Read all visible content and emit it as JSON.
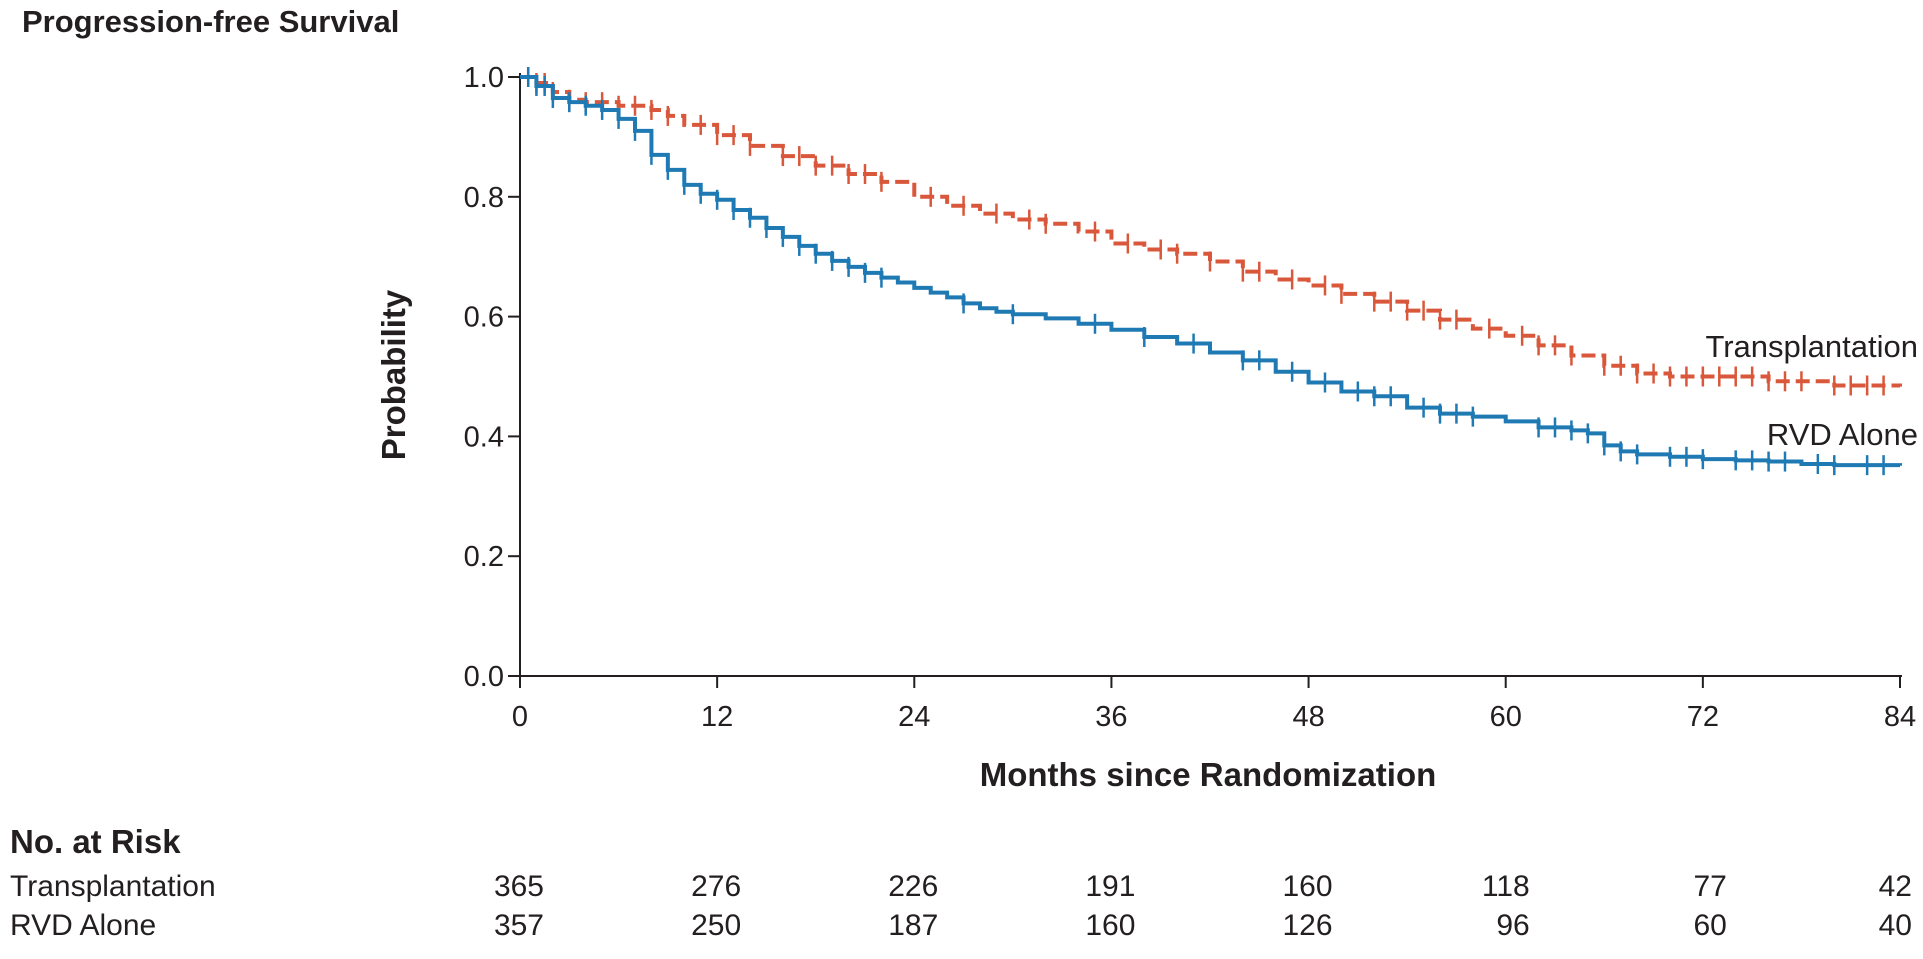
{
  "chart_data": {
    "type": "line",
    "title": "Progression-free Survival",
    "xlabel": "Months since Randomization",
    "ylabel": "Probability",
    "xlim": [
      0,
      84
    ],
    "ylim": [
      0,
      1.0
    ],
    "x_ticks": [
      0,
      12,
      24,
      36,
      48,
      60,
      72,
      84
    ],
    "y_ticks": [
      "0.0",
      "0.2",
      "0.4",
      "0.6",
      "0.8",
      "1.0"
    ],
    "grid": false,
    "legend": "inline labels at right end of curves",
    "series": [
      {
        "name": "Transplantation",
        "color": "#d9573a",
        "dash": "dashed",
        "points": [
          [
            0,
            1.0
          ],
          [
            1,
            0.99
          ],
          [
            2,
            0.975
          ],
          [
            3,
            0.962
          ],
          [
            4,
            0.958
          ],
          [
            6,
            0.952
          ],
          [
            8,
            0.945
          ],
          [
            9,
            0.935
          ],
          [
            10,
            0.92
          ],
          [
            12,
            0.903
          ],
          [
            14,
            0.885
          ],
          [
            16,
            0.868
          ],
          [
            18,
            0.852
          ],
          [
            20,
            0.838
          ],
          [
            22,
            0.825
          ],
          [
            24,
            0.8
          ],
          [
            26,
            0.785
          ],
          [
            28,
            0.772
          ],
          [
            30,
            0.762
          ],
          [
            32,
            0.755
          ],
          [
            34,
            0.742
          ],
          [
            36,
            0.722
          ],
          [
            38,
            0.712
          ],
          [
            40,
            0.705
          ],
          [
            42,
            0.692
          ],
          [
            44,
            0.675
          ],
          [
            46,
            0.662
          ],
          [
            48,
            0.652
          ],
          [
            50,
            0.638
          ],
          [
            52,
            0.625
          ],
          [
            54,
            0.61
          ],
          [
            56,
            0.595
          ],
          [
            58,
            0.58
          ],
          [
            60,
            0.568
          ],
          [
            62,
            0.552
          ],
          [
            64,
            0.535
          ],
          [
            66,
            0.518
          ],
          [
            68,
            0.505
          ],
          [
            70,
            0.5
          ],
          [
            72,
            0.5
          ],
          [
            76,
            0.492
          ],
          [
            80,
            0.485
          ],
          [
            84,
            0.483
          ]
        ],
        "censored": [
          0.5,
          1,
          1.5,
          2,
          3,
          4,
          5,
          6,
          7,
          8,
          9,
          11,
          12,
          13,
          14,
          16,
          17,
          18,
          19,
          20,
          21,
          22,
          25,
          27,
          29,
          31,
          32,
          35,
          37,
          39,
          40,
          42,
          44,
          45,
          47,
          49,
          50,
          52,
          53,
          54,
          55,
          56,
          57,
          59,
          61,
          62,
          63,
          64,
          66,
          67,
          68,
          69,
          70,
          71,
          72,
          73,
          74,
          75,
          76,
          77,
          78,
          80,
          81,
          82,
          83
        ]
      },
      {
        "name": "RVD Alone",
        "color": "#1f7ab4",
        "dash": "solid",
        "points": [
          [
            0,
            1.0
          ],
          [
            1,
            0.985
          ],
          [
            2,
            0.965
          ],
          [
            3,
            0.958
          ],
          [
            4,
            0.952
          ],
          [
            5,
            0.945
          ],
          [
            6,
            0.93
          ],
          [
            7,
            0.91
          ],
          [
            8,
            0.87
          ],
          [
            9,
            0.845
          ],
          [
            10,
            0.82
          ],
          [
            11,
            0.805
          ],
          [
            12,
            0.795
          ],
          [
            13,
            0.778
          ],
          [
            14,
            0.765
          ],
          [
            15,
            0.748
          ],
          [
            16,
            0.733
          ],
          [
            17,
            0.718
          ],
          [
            18,
            0.705
          ],
          [
            19,
            0.693
          ],
          [
            20,
            0.683
          ],
          [
            21,
            0.673
          ],
          [
            22,
            0.665
          ],
          [
            23,
            0.657
          ],
          [
            24,
            0.648
          ],
          [
            25,
            0.64
          ],
          [
            26,
            0.632
          ],
          [
            27,
            0.622
          ],
          [
            28,
            0.614
          ],
          [
            29,
            0.608
          ],
          [
            30,
            0.604
          ],
          [
            32,
            0.597
          ],
          [
            34,
            0.588
          ],
          [
            36,
            0.578
          ],
          [
            38,
            0.566
          ],
          [
            40,
            0.555
          ],
          [
            42,
            0.54
          ],
          [
            44,
            0.527
          ],
          [
            46,
            0.508
          ],
          [
            48,
            0.49
          ],
          [
            50,
            0.475
          ],
          [
            52,
            0.467
          ],
          [
            54,
            0.448
          ],
          [
            56,
            0.438
          ],
          [
            58,
            0.433
          ],
          [
            60,
            0.425
          ],
          [
            62,
            0.415
          ],
          [
            64,
            0.41
          ],
          [
            65,
            0.405
          ],
          [
            66,
            0.385
          ],
          [
            67,
            0.375
          ],
          [
            68,
            0.37
          ],
          [
            70,
            0.366
          ],
          [
            72,
            0.362
          ],
          [
            74,
            0.36
          ],
          [
            76,
            0.358
          ],
          [
            78,
            0.354
          ],
          [
            80,
            0.352
          ],
          [
            84,
            0.351
          ]
        ],
        "censored": [
          0.5,
          1,
          1.5,
          2,
          3,
          4,
          5,
          6,
          7,
          8,
          9,
          10,
          11,
          12,
          13,
          14,
          15,
          16,
          17,
          18,
          19,
          20,
          21,
          22,
          27,
          30,
          35,
          38,
          41,
          44,
          45,
          47,
          49,
          51,
          52,
          53,
          55,
          56,
          57,
          58,
          62,
          63,
          64,
          65,
          66,
          67,
          68,
          70,
          71,
          72,
          74,
          75,
          76,
          77,
          79,
          80,
          82,
          83
        ]
      }
    ],
    "risk_table": {
      "heading": "No. at Risk",
      "rows": [
        {
          "label": "Transplantation",
          "values": [
            "365",
            "276",
            "226",
            "191",
            "160",
            "118",
            "77",
            "42"
          ]
        },
        {
          "label": "RVD Alone",
          "values": [
            "357",
            "250",
            "187",
            "160",
            "126",
            "96",
            "60",
            "40"
          ]
        }
      ]
    }
  }
}
